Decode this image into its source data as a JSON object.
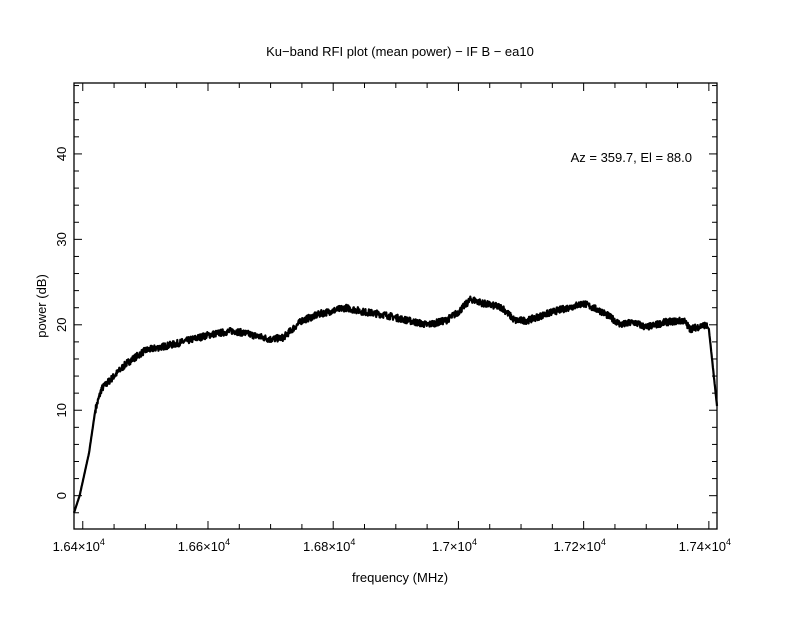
{
  "chart_data": {
    "type": "line",
    "title": "Ku−band RFI plot (mean power) − IF B − ea10",
    "xlabel": "frequency (MHz)",
    "ylabel": "power (dB)",
    "annotation": "Az = 359.7, El = 88.0",
    "xlim": [
      16386,
      17413
    ],
    "ylim": [
      -3.9,
      48.3
    ],
    "x_ticks": [
      16400,
      16600,
      16800,
      17000,
      17200,
      17400
    ],
    "x_tick_labels": [
      "1.64×10",
      "1.66×10",
      "1.68×10",
      "1.7×10",
      "1.72×10",
      "1.74×10"
    ],
    "x_tick_exponent": "4",
    "y_ticks": [
      0,
      10,
      20,
      30,
      40
    ],
    "y_tick_labels": [
      "0",
      "10",
      "20",
      "30",
      "40"
    ],
    "grid": false,
    "series": [
      {
        "name": "mean power",
        "color": "#000000",
        "x": [
          16386,
          16395,
          16410,
          16420,
          16430,
          16450,
          16470,
          16500,
          16550,
          16600,
          16640,
          16660,
          16700,
          16720,
          16750,
          16780,
          16820,
          16850,
          16880,
          16920,
          16950,
          16980,
          17000,
          17020,
          17040,
          17070,
          17090,
          17110,
          17150,
          17200,
          17230,
          17260,
          17280,
          17300,
          17330,
          17360,
          17370,
          17395,
          17400,
          17413
        ],
        "y": [
          -2,
          0,
          5,
          10,
          12.5,
          14,
          15.5,
          17,
          17.8,
          18.8,
          19.3,
          19,
          18.3,
          18.5,
          20.5,
          21.3,
          22,
          21.5,
          21.2,
          20.5,
          20,
          20.5,
          21.5,
          23,
          22.5,
          22,
          20.5,
          20.5,
          21.5,
          22.5,
          21.5,
          20,
          20.3,
          19.7,
          20.3,
          20.5,
          19.5,
          20,
          19.5,
          10.5
        ]
      }
    ]
  }
}
